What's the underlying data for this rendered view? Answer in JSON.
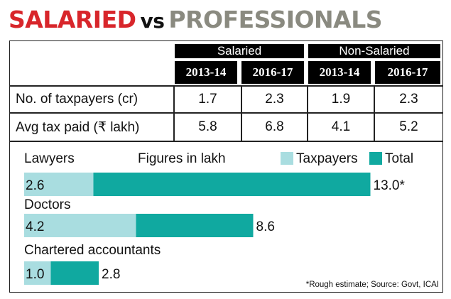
{
  "title": {
    "part1": "SALARIED",
    "part2": "vs",
    "part3": "PROFESSIONALS"
  },
  "table": {
    "groups": [
      "Salaried",
      "Non-Salaried"
    ],
    "years": [
      "2013-14",
      "2016-17",
      "2013-14",
      "2016-17"
    ],
    "rows": [
      {
        "label": "No. of taxpayers (cr)",
        "values": [
          "1.7",
          "2.3",
          "1.9",
          "2.3"
        ]
      },
      {
        "label": "Avg tax paid (₹ lakh)",
        "values": [
          "5.8",
          "6.8",
          "4.1",
          "5.2"
        ]
      }
    ]
  },
  "chart_data": {
    "type": "bar",
    "orientation": "horizontal",
    "note": "Figures in lakh",
    "categories": [
      "Lawyers",
      "Doctors",
      "Chartered accountants"
    ],
    "series": [
      {
        "name": "Taxpayers",
        "values": [
          2.6,
          4.2,
          1.0
        ],
        "labels": [
          "2.6",
          "4.2",
          "1.0"
        ]
      },
      {
        "name": "Total",
        "values": [
          13.0,
          8.6,
          2.8
        ],
        "labels": [
          "13.0*",
          "8.6",
          "2.8"
        ]
      }
    ],
    "xlim": [
      0,
      13
    ],
    "legend": "top-right",
    "grid": false,
    "colors": {
      "Taxpayers": "#a9dde0",
      "Total": "#10a9a0"
    },
    "footnote": "*Rough estimate; Source: Govt, ICAI"
  }
}
